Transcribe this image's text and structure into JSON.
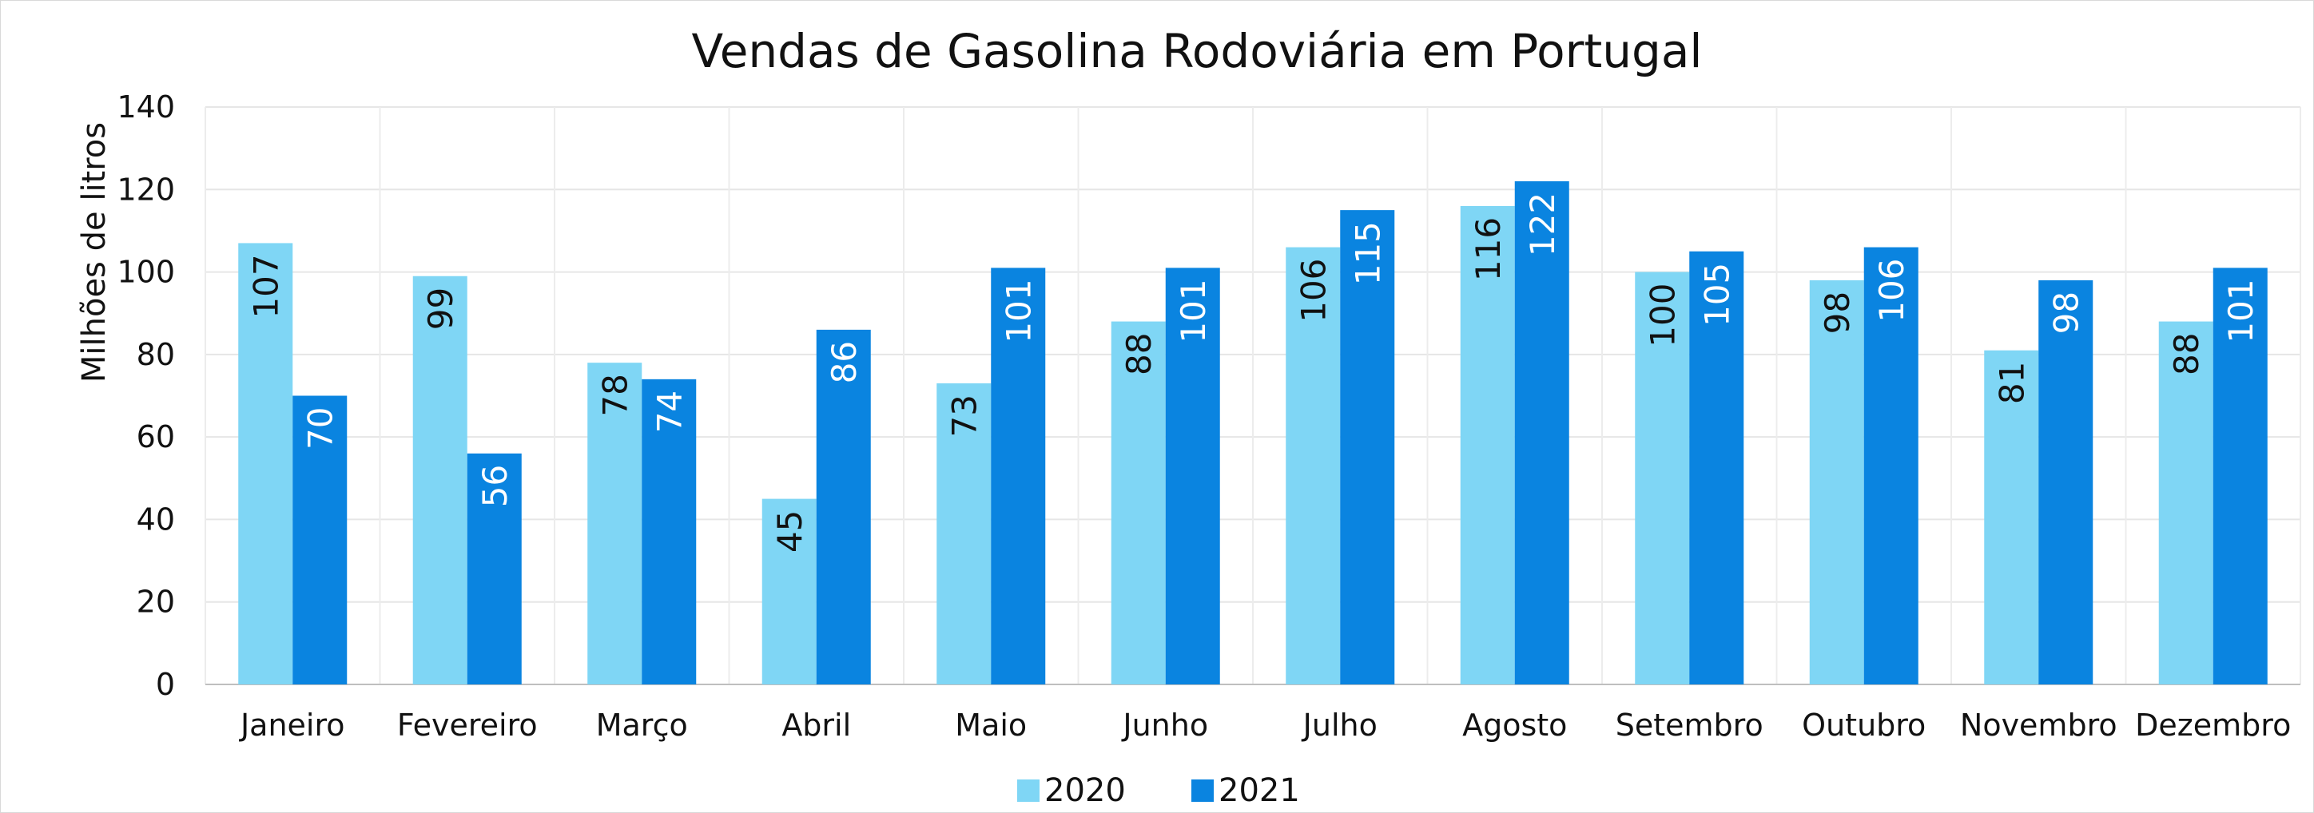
{
  "chart_data": {
    "type": "bar",
    "title": "Vendas de Gasolina Rodoviária em Portugal",
    "xlabel": "",
    "ylabel": "Milhões de litros",
    "categories": [
      "Janeiro",
      "Fevereiro",
      "Março",
      "Abril",
      "Maio",
      "Junho",
      "Julho",
      "Agosto",
      "Setembro",
      "Outubro",
      "Novembro",
      "Dezembro"
    ],
    "series": [
      {
        "name": "2020",
        "color": "#7fd6f5",
        "label_color": "#111111",
        "values": [
          107,
          99,
          78,
          45,
          73,
          88,
          106,
          116,
          100,
          98,
          81,
          88
        ]
      },
      {
        "name": "2021",
        "color": "#0a84e0",
        "label_color": "#ffffff",
        "values": [
          70,
          56,
          74,
          86,
          101,
          101,
          115,
          122,
          105,
          106,
          98,
          101
        ]
      }
    ],
    "ylim": [
      0,
      140
    ],
    "yticks": [
      0,
      20,
      40,
      60,
      80,
      100,
      120,
      140
    ],
    "grid": true,
    "legend_position": "bottom",
    "data_labels": "inside-end-rotated"
  }
}
